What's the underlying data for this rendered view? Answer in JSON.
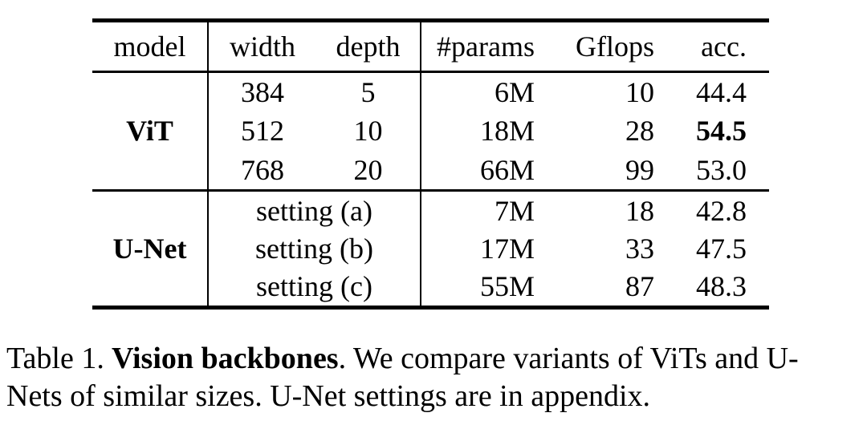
{
  "table": {
    "headers": [
      "model",
      "width",
      "depth",
      "#params",
      "Gflops",
      "acc."
    ],
    "vit": {
      "label": "ViT",
      "rows": [
        {
          "width": "384",
          "depth": "5",
          "params": "6M",
          "gflops": "10",
          "acc": "44.4"
        },
        {
          "width": "512",
          "depth": "10",
          "params": "18M",
          "gflops": "28",
          "acc": "54.5"
        },
        {
          "width": "768",
          "depth": "20",
          "params": "66M",
          "gflops": "99",
          "acc": "53.0"
        }
      ]
    },
    "unet": {
      "label": "U-Net",
      "rows": [
        {
          "setting": "setting (a)",
          "params": "7M",
          "gflops": "18",
          "acc": "42.8"
        },
        {
          "setting": "setting (b)",
          "params": "17M",
          "gflops": "33",
          "acc": "47.5"
        },
        {
          "setting": "setting (c)",
          "params": "55M",
          "gflops": "87",
          "acc": "48.3"
        }
      ]
    }
  },
  "caption": {
    "label": "Table 1.",
    "title": "Vision backbones",
    "line1_rest": ". We compare variants of ViTs and U-",
    "line2": "Nets of similar sizes. U-Net settings are in appendix."
  }
}
